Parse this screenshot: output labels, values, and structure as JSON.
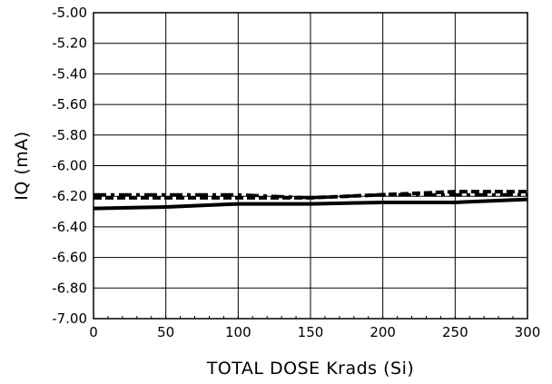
{
  "chart_data": {
    "type": "line",
    "xlabel": "TOTAL DOSE Krads (Si)",
    "ylabel": "IQ (mA)",
    "xlim": [
      0,
      300
    ],
    "ylim": [
      -7.0,
      -5.0
    ],
    "x_ticks": [
      "0",
      "50",
      "100",
      "150",
      "200",
      "250",
      "300"
    ],
    "y_ticks": [
      "-5.00",
      "-5.20",
      "-5.40",
      "-5.60",
      "-5.80",
      "-6.00",
      "-6.20",
      "-6.40",
      "-6.60",
      "-6.80",
      "-7.00"
    ],
    "grid": true,
    "x": [
      0,
      50,
      100,
      150,
      200,
      250,
      300
    ],
    "series": [
      {
        "values": [
          -6.28,
          -6.27,
          -6.25,
          -6.25,
          -6.24,
          -6.24,
          -6.22
        ],
        "style": "solid"
      },
      {
        "values": [
          -6.21,
          -6.21,
          -6.21,
          -6.21,
          -6.19,
          -6.17,
          -6.17
        ],
        "style": "dashed"
      },
      {
        "values": [
          -6.19,
          -6.19,
          -6.19,
          -6.21,
          -6.19,
          -6.19,
          -6.19
        ],
        "style": "dash-dot"
      }
    ],
    "line_color": "#000000"
  }
}
